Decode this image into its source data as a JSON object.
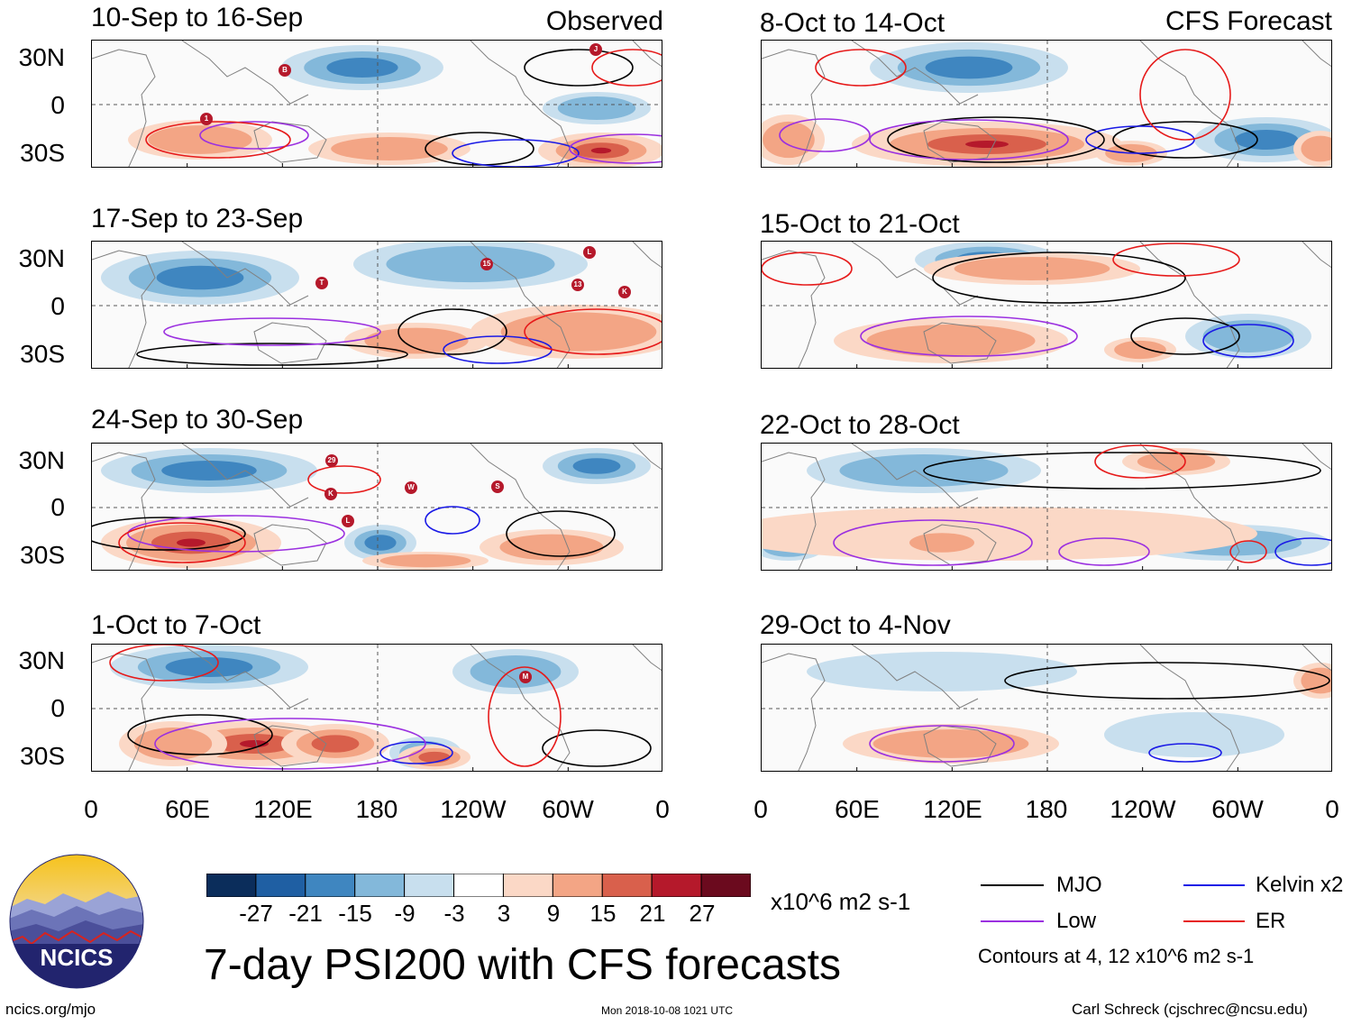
{
  "header": {
    "left_label": "Observed",
    "right_label": "CFS Forecast"
  },
  "panels_left": [
    {
      "title": "10-Sep to 16-Sep"
    },
    {
      "title": "17-Sep to 23-Sep"
    },
    {
      "title": "24-Sep to 30-Sep"
    },
    {
      "title": "1-Oct to 7-Oct"
    }
  ],
  "panels_right": [
    {
      "title": "8-Oct to 14-Oct"
    },
    {
      "title": "15-Oct to 21-Oct"
    },
    {
      "title": "22-Oct to 28-Oct"
    },
    {
      "title": "29-Oct to 4-Nov"
    }
  ],
  "lat_labels": [
    "30N",
    "0",
    "30S"
  ],
  "lon_labels": [
    "0",
    "60E",
    "120E",
    "180",
    "120W",
    "60W",
    "0"
  ],
  "colorbar": {
    "colors": [
      "#0b2d5b",
      "#1f5fa3",
      "#3f86c0",
      "#83b8da",
      "#c8dfee",
      "#ffffff",
      "#fbd8c6",
      "#f3a585",
      "#d9604c",
      "#b5192b",
      "#6b0a1e"
    ],
    "ticks": [
      "-27",
      "-21",
      "-15",
      "-9",
      "-3",
      "3",
      "9",
      "15",
      "21",
      "27"
    ],
    "units": "x10^6 m2 s-1"
  },
  "legend": {
    "items": [
      {
        "label": "MJO",
        "color": "#000000"
      },
      {
        "label": "Kelvin x2",
        "color": "#1a1ae6"
      },
      {
        "label": "Low",
        "color": "#9b30e0"
      },
      {
        "label": "ER",
        "color": "#e61a1a"
      }
    ],
    "contours_note": "Contours at 4, 12 x10^6 m2 s-1"
  },
  "title": "7-day PSI200 with CFS forecasts",
  "logo_text": "NCICS",
  "footer": {
    "url": "ncics.org/mjo",
    "timestamp": "Mon 2018-10-08 1021 UTC",
    "author": "Carl Schreck (cjschrec@ncsu.edu)"
  },
  "storm_markers": [
    {
      "label": "B"
    },
    {
      "label": "J"
    },
    {
      "label": "1"
    },
    {
      "label": "T"
    },
    {
      "label": "15"
    },
    {
      "label": "L"
    },
    {
      "label": "13"
    },
    {
      "label": "K"
    },
    {
      "label": "29"
    },
    {
      "label": "K"
    },
    {
      "label": "W"
    },
    {
      "label": "S"
    },
    {
      "label": "L"
    },
    {
      "label": "M"
    }
  ]
}
